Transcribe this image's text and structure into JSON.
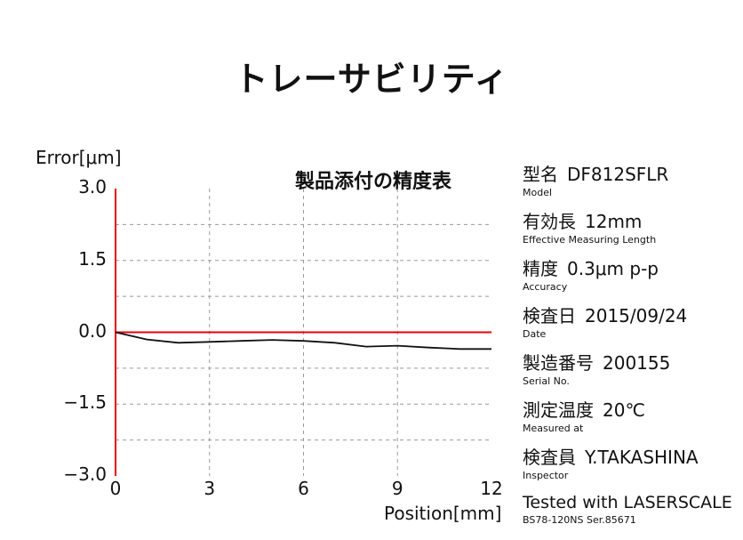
{
  "page": {
    "title": "トレーサビリティ"
  },
  "chart_data": {
    "type": "line",
    "title": "製品添付の精度表",
    "ylabel": "Error[μm]",
    "xlabel": "Position[mm]",
    "xlim": [
      0,
      12
    ],
    "ylim": [
      -3.0,
      3.0
    ],
    "x_ticks": [
      "0",
      "3",
      "6",
      "9",
      "12"
    ],
    "y_ticks": [
      "3.0",
      "1.5",
      "0.0",
      "−1.5",
      "−3.0"
    ],
    "grid": true,
    "series": [
      {
        "color": "#111111",
        "x": [
          0,
          1,
          2,
          3,
          4,
          5,
          6,
          7,
          8,
          9,
          10,
          11,
          12
        ],
        "y": [
          0.0,
          -0.15,
          -0.22,
          -0.2,
          -0.18,
          -0.16,
          -0.18,
          -0.22,
          -0.3,
          -0.28,
          -0.32,
          -0.35,
          -0.35
        ]
      }
    ],
    "axis_color": "#e8000b"
  },
  "specs": [
    {
      "jp": "型名",
      "value": "DF812SFLR",
      "en": "Model"
    },
    {
      "jp": "有効長",
      "value": "12mm",
      "en": "Effective Measuring Length"
    },
    {
      "jp": "精度",
      "value": "0.3μm p-p",
      "en": "Accuracy"
    },
    {
      "jp": "検査日",
      "value": "2015/09/24",
      "en": "Date"
    },
    {
      "jp": "製造番号",
      "value": "200155",
      "en": "Serial No."
    },
    {
      "jp": "測定温度",
      "value": "20℃",
      "en": "Measured at"
    },
    {
      "jp": "検査員",
      "value": "Y.TAKASHINA",
      "en": "Inspector"
    }
  ],
  "footer": {
    "main": "Tested with LASERSCALE",
    "sub": "BS78-120NS Ser.85671"
  }
}
